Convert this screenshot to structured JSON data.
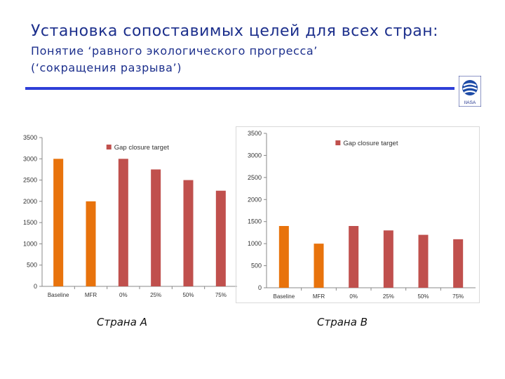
{
  "header": {
    "title": "Установка сопоставимых целей для всех стран:",
    "subtitle_line1": "Понятие ‘равного экологического прогресса’",
    "subtitle_line2": "(‘сокращения разрыва’)",
    "logo_text": "IIASA"
  },
  "colors": {
    "accent_rule": "#2e3fd8",
    "title": "#1c2f8c",
    "baseline_bar": "#e8730c",
    "gap_bar": "#c0504d"
  },
  "chart_data": [
    {
      "type": "bar",
      "caption": "Страна A",
      "categories": [
        "Baseline",
        "MFR",
        "0%",
        "25%",
        "50%",
        "75%"
      ],
      "values": [
        3000,
        2000,
        3000,
        2750,
        2500,
        2250
      ],
      "bar_colors": [
        "#e8730c",
        "#e8730c",
        "#c0504d",
        "#c0504d",
        "#c0504d",
        "#c0504d"
      ],
      "yticks": [
        0,
        500,
        1000,
        1500,
        2000,
        2500,
        3000,
        3500
      ],
      "ylim": [
        0,
        3500
      ],
      "legend": {
        "label": "Gap closure target",
        "placement": "top-center"
      },
      "grid": false
    },
    {
      "type": "bar",
      "caption": "Страна B",
      "categories": [
        "Baseline",
        "MFR",
        "0%",
        "25%",
        "50%",
        "75%"
      ],
      "values": [
        1400,
        1000,
        1400,
        1300,
        1200,
        1100
      ],
      "bar_colors": [
        "#e8730c",
        "#e8730c",
        "#c0504d",
        "#c0504d",
        "#c0504d",
        "#c0504d"
      ],
      "yticks": [
        0,
        500,
        1000,
        1500,
        2000,
        2500,
        3000,
        3500
      ],
      "ylim": [
        0,
        3500
      ],
      "legend": {
        "label": "Gap closure target",
        "placement": "top-center"
      },
      "grid": false
    }
  ]
}
